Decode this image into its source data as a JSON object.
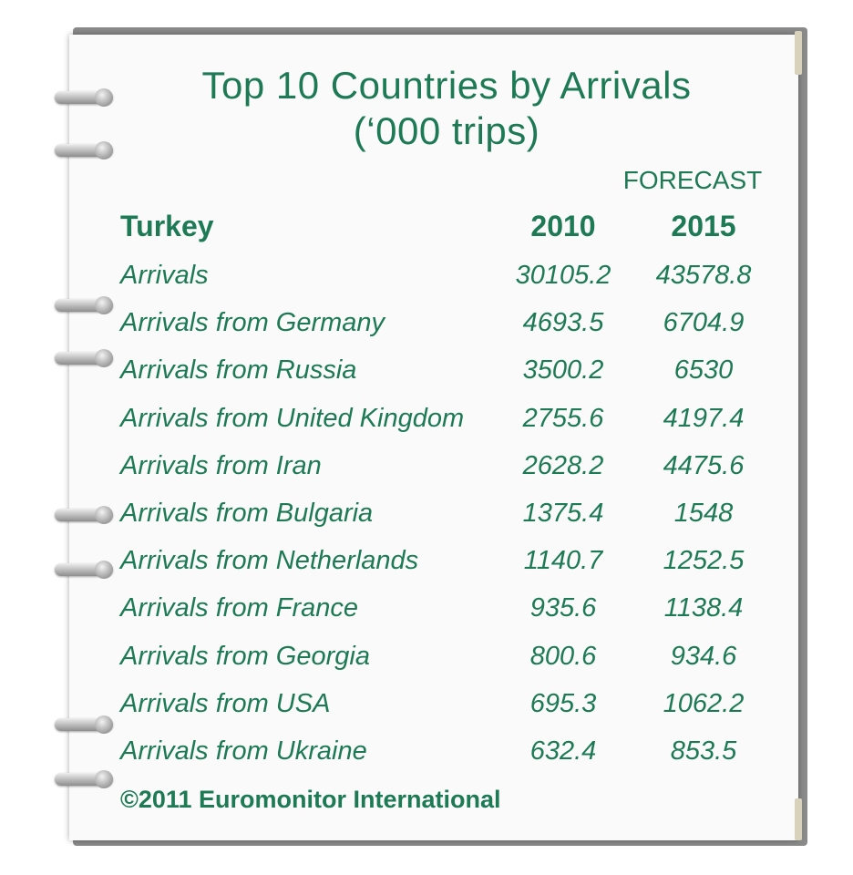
{
  "chart_data": {
    "type": "table",
    "title_line1": "Top 10 Countries by Arrivals",
    "title_line2": "(‘000 trips)",
    "forecast_label": "FORECAST",
    "header": {
      "country": "Turkey",
      "col1": "2010",
      "col2": "2015"
    },
    "rows": [
      {
        "label": "Arrivals",
        "v2010": "30105.2",
        "v2015": "43578.8"
      },
      {
        "label": "Arrivals from Germany",
        "v2010": "4693.5",
        "v2015": "6704.9"
      },
      {
        "label": "Arrivals from Russia",
        "v2010": "3500.2",
        "v2015": "6530"
      },
      {
        "label": "Arrivals from United Kingdom",
        "v2010": "2755.6",
        "v2015": "4197.4"
      },
      {
        "label": "Arrivals from Iran",
        "v2010": "2628.2",
        "v2015": "4475.6"
      },
      {
        "label": "Arrivals from Bulgaria",
        "v2010": "1375.4",
        "v2015": "1548"
      },
      {
        "label": "Arrivals from Netherlands",
        "v2010": "1140.7",
        "v2015": "1252.5"
      },
      {
        "label": "Arrivals from France",
        "v2010": "935.6",
        "v2015": "1138.4"
      },
      {
        "label": "Arrivals from Georgia",
        "v2010": "800.6",
        "v2015": "934.6"
      },
      {
        "label": "Arrivals from USA",
        "v2010": "695.3",
        "v2015": "1062.2"
      },
      {
        "label": "Arrivals from Ukraine",
        "v2010": "632.4",
        "v2015": "853.5"
      }
    ],
    "source": "©2011 Euromonitor International"
  },
  "colors": {
    "text": "#1d7a55",
    "paper": "#fafafa",
    "binder": "#8a8a8a"
  }
}
